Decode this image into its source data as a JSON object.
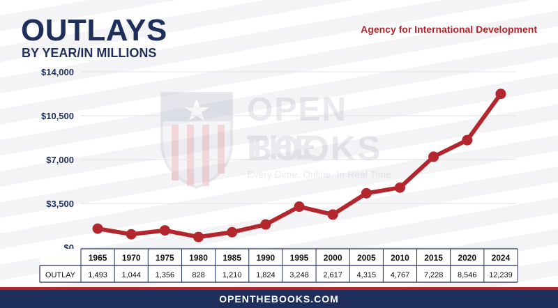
{
  "header": {
    "title": "OUTLAYS",
    "subtitle": "BY YEAR/IN MILLIONS",
    "agency": "Agency for International Development"
  },
  "watermark": {
    "line1": "OPEN THE",
    "line2": "BOOKS",
    "tagline": "Every Dime. Online. In Real Time."
  },
  "footer": {
    "site": "OPENTHEBOOKS.COM"
  },
  "colors": {
    "navy": "#1f2f5b",
    "red": "#b3262d",
    "line": "#b3262d"
  },
  "chart_data": {
    "type": "line",
    "categories": [
      "1965",
      "1970",
      "1975",
      "1980",
      "1985",
      "1990",
      "1995",
      "2000",
      "2005",
      "2010",
      "2015",
      "2020",
      "2024"
    ],
    "series": [
      {
        "name": "OUTLAY",
        "values": [
          1493,
          1044,
          1356,
          828,
          1210,
          1824,
          3248,
          2617,
          4315,
          4767,
          7228,
          8546,
          12239
        ]
      }
    ],
    "value_labels": [
      "1,493",
      "1,044",
      "1,356",
      "828",
      "1,210",
      "1,824",
      "3,248",
      "2,617",
      "4,315",
      "4,767",
      "7,228",
      "8,546",
      "12,239"
    ],
    "table_row_label": "OUTLAY",
    "ylim": [
      0,
      14000
    ],
    "yticks": [
      0,
      3500,
      7000,
      10500,
      14000
    ],
    "ytick_labels": [
      "$0",
      "$3,500",
      "$7,000",
      "$10,500",
      "$14,000"
    ],
    "grid": true,
    "title": "OUTLAYS",
    "subtitle": "BY YEAR/IN MILLIONS"
  }
}
